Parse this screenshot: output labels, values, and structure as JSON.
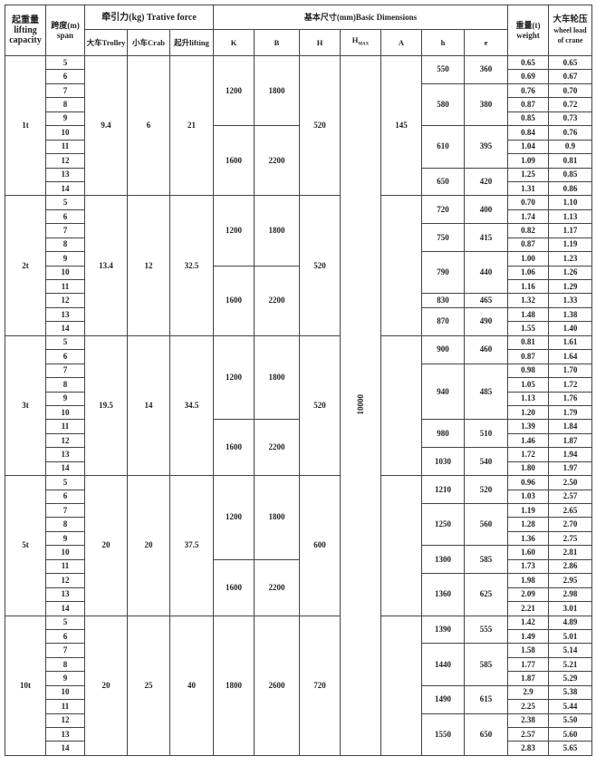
{
  "header": {
    "capacity": [
      "起重量",
      "lifting",
      "capacity"
    ],
    "span": [
      "跨度(m)",
      "span"
    ],
    "tractive_force": "牵引力(kg) Trative force",
    "basic_dimensions": "基本尺寸(mm)Basic Dimensions",
    "weight": [
      "重量(t)",
      "weight"
    ],
    "wheel_load": [
      "大车轮压",
      "wheel load",
      "of crane"
    ],
    "trolley": "大车Trolley",
    "crab": "小车Crab",
    "lifting": "起升lifting",
    "K": "K",
    "B": "B",
    "H": "H",
    "Hmax": "H",
    "Hmax_sub": "MAX",
    "A": "A",
    "h": "h",
    "e": "e"
  },
  "hmax_value": "10000",
  "groups": [
    {
      "capacity": "1t",
      "trolley": "9.4",
      "crab": "6",
      "lifting": "21",
      "H": "520",
      "A": "145",
      "KB": [
        {
          "rows": 5,
          "K": "1200",
          "B": "1800"
        },
        {
          "rows": 5,
          "K": "1600",
          "B": "2200"
        }
      ],
      "he": [
        {
          "rows": 2,
          "h": "550",
          "e": "360"
        },
        {
          "rows": 3,
          "h": "580",
          "e": "380"
        },
        {
          "rows": 3,
          "h": "610",
          "e": "395"
        },
        {
          "rows": 2,
          "h": "650",
          "e": "420"
        }
      ],
      "weight": [
        "0.65",
        "0.69",
        "0.76",
        "0.87",
        "0.85",
        "0.84",
        "1.04",
        "1.09",
        "1.25",
        "1.31"
      ],
      "wheel": [
        "0.65",
        "0.67",
        "0.70",
        "0.72",
        "0.73",
        "0.76",
        "0.9",
        "0.81",
        "0.85",
        "0.86"
      ]
    },
    {
      "capacity": "2t",
      "trolley": "13.4",
      "crab": "12",
      "lifting": "32.5",
      "H": "520",
      "A": "",
      "KB": [
        {
          "rows": 5,
          "K": "1200",
          "B": "1800"
        },
        {
          "rows": 5,
          "K": "1600",
          "B": "2200"
        }
      ],
      "he": [
        {
          "rows": 2,
          "h": "720",
          "e": "400"
        },
        {
          "rows": 2,
          "h": "750",
          "e": "415"
        },
        {
          "rows": 3,
          "h": "790",
          "e": "440"
        },
        {
          "rows": 1,
          "h": "830",
          "e": "465"
        },
        {
          "rows": 2,
          "h": "870",
          "e": "490"
        }
      ],
      "weight": [
        "0.70",
        "1.74",
        "0.82",
        "0.87",
        "1.00",
        "1.06",
        "1.16",
        "1.32",
        "1.48",
        "1.55"
      ],
      "wheel": [
        "1.10",
        "1.13",
        "1.17",
        "1.19",
        "1.23",
        "1.26",
        "1.29",
        "1.33",
        "1.38",
        "1.40"
      ]
    },
    {
      "capacity": "3t",
      "trolley": "19.5",
      "crab": "14",
      "lifting": "34.5",
      "H": "520",
      "A": "",
      "KB": [
        {
          "rows": 6,
          "K": "1200",
          "B": "1800"
        },
        {
          "rows": 4,
          "K": "1600",
          "B": "2200"
        }
      ],
      "he": [
        {
          "rows": 2,
          "h": "900",
          "e": "460"
        },
        {
          "rows": 4,
          "h": "940",
          "e": "485"
        },
        {
          "rows": 2,
          "h": "980",
          "e": "510"
        },
        {
          "rows": 2,
          "h": "1030",
          "e": "540"
        }
      ],
      "weight": [
        "0.81",
        "0.87",
        "0.98",
        "1.05",
        "1.13",
        "1.20",
        "1.39",
        "1.46",
        "1.72",
        "1.80"
      ],
      "wheel": [
        "1.61",
        "1.64",
        "1.70",
        "1.72",
        "1.76",
        "1.79",
        "1.84",
        "1.87",
        "1.94",
        "1.97"
      ]
    },
    {
      "capacity": "5t",
      "trolley": "20",
      "crab": "20",
      "lifting": "37.5",
      "H": "600",
      "A": "",
      "KB": [
        {
          "rows": 6,
          "K": "1200",
          "B": "1800"
        },
        {
          "rows": 4,
          "K": "1600",
          "B": "2200"
        }
      ],
      "he": [
        {
          "rows": 2,
          "h": "1210",
          "e": "520"
        },
        {
          "rows": 3,
          "h": "1250",
          "e": "560"
        },
        {
          "rows": 2,
          "h": "1300",
          "e": "585"
        },
        {
          "rows": 3,
          "h": "1360",
          "e": "625"
        }
      ],
      "weight": [
        "0.96",
        "1.03",
        "1.19",
        "1.28",
        "1.36",
        "1.60",
        "1.73",
        "1.98",
        "2.09",
        "2.21"
      ],
      "wheel": [
        "2.50",
        "2.57",
        "2.65",
        "2.70",
        "2.75",
        "2.81",
        "2.86",
        "2.95",
        "2.98",
        "3.01"
      ]
    },
    {
      "capacity": "10t",
      "trolley": "20",
      "crab": "25",
      "lifting": "40",
      "H": "720",
      "A": "",
      "KB": [
        {
          "rows": 10,
          "K": "1800",
          "B": "2600"
        }
      ],
      "he": [
        {
          "rows": 2,
          "h": "1390",
          "e": "555"
        },
        {
          "rows": 3,
          "h": "1440",
          "e": "585"
        },
        {
          "rows": 2,
          "h": "1490",
          "e": "615"
        },
        {
          "rows": 3,
          "h": "1550",
          "e": "650"
        }
      ],
      "weight": [
        "1.42",
        "1.49",
        "1.58",
        "1.77",
        "1.87",
        "2.9",
        "2.25",
        "2.38",
        "2.57",
        "2.83"
      ],
      "wheel": [
        "4.89",
        "5.01",
        "5.14",
        "5.21",
        "5.29",
        "5.38",
        "5.44",
        "5.50",
        "5.60",
        "5.65"
      ]
    }
  ],
  "spans": [
    "5",
    "6",
    "7",
    "8",
    "9",
    "10",
    "11",
    "12",
    "13",
    "14"
  ]
}
